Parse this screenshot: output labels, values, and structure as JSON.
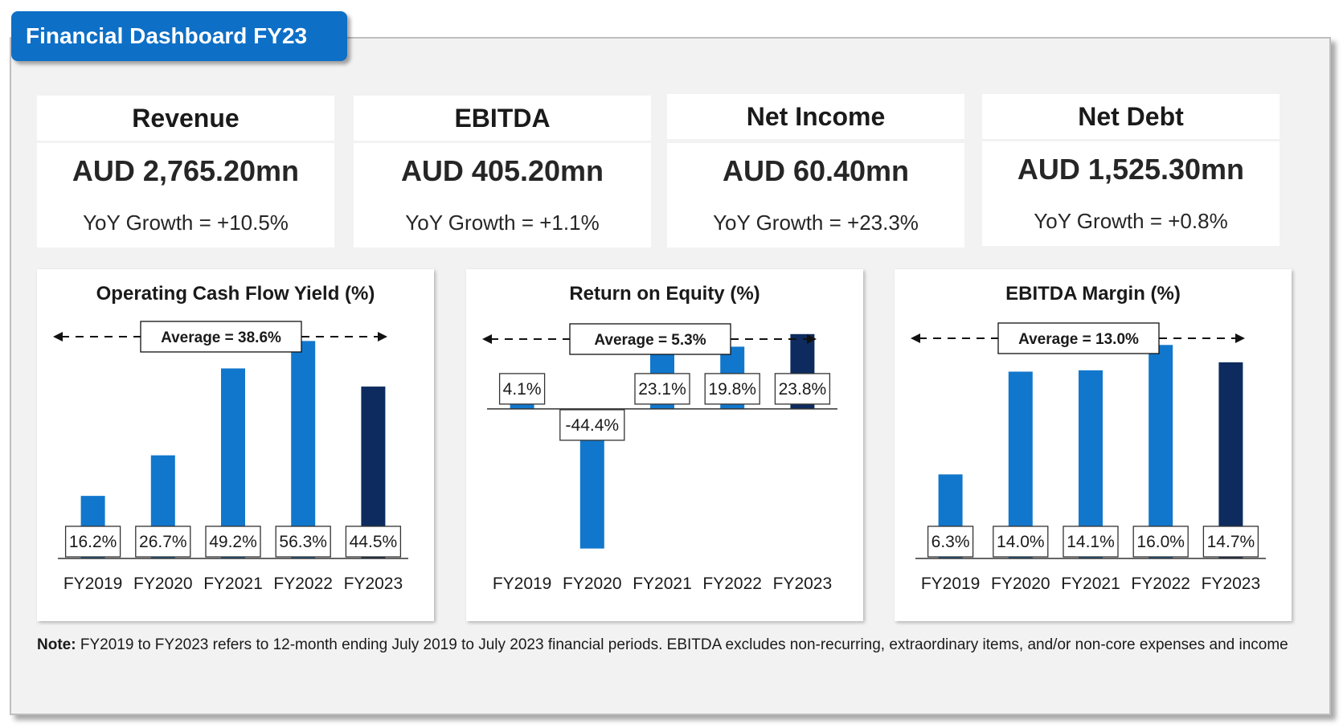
{
  "dashboard": {
    "title": "Financial Dashboard FY23"
  },
  "kpis": [
    {
      "label": "Revenue",
      "value": "AUD 2,765.20mn",
      "growth": "YoY Growth = +10.5%"
    },
    {
      "label": "EBITDA",
      "value": "AUD 405.20mn",
      "growth": "YoY Growth = +1.1%"
    },
    {
      "label": "Net Income",
      "value": "AUD 60.40mn",
      "growth": "YoY Growth = +23.3%"
    },
    {
      "label": "Net Debt",
      "value": "AUD 1,525.30mn",
      "growth": "YoY Growth = +0.8%"
    }
  ],
  "colors": {
    "bar": "#1177cc",
    "highlight": "#0d2b5e",
    "tab": "#0e6fc6"
  },
  "chart_data": [
    {
      "type": "bar",
      "title": "Operating Cash Flow Yield (%)",
      "categories": [
        "FY2019",
        "FY2020",
        "FY2021",
        "FY2022",
        "FY2023"
      ],
      "values": [
        16.2,
        26.7,
        49.2,
        56.3,
        44.5
      ],
      "labels": [
        "16.2%",
        "26.7%",
        "49.2%",
        "56.3%",
        "44.5%"
      ],
      "average_label": "Average = 38.6%",
      "ylim": [
        0,
        57
      ]
    },
    {
      "type": "bar",
      "title": "Return on Equity (%)",
      "categories": [
        "FY2019",
        "FY2020",
        "FY2021",
        "FY2022",
        "FY2023"
      ],
      "values": [
        4.1,
        -44.4,
        23.1,
        19.8,
        23.8
      ],
      "labels": [
        "4.1%",
        "-44.4%",
        "23.1%",
        "19.8%",
        "23.8%"
      ],
      "average_label": "Average = 5.3%",
      "ylim": [
        -45,
        24
      ]
    },
    {
      "type": "bar",
      "title": "EBITDA Margin (%)",
      "categories": [
        "FY2019",
        "FY2020",
        "FY2021",
        "FY2022",
        "FY2023"
      ],
      "values": [
        6.3,
        14.0,
        14.1,
        16.0,
        14.7
      ],
      "labels": [
        "6.3%",
        "14.0%",
        "14.1%",
        "16.0%",
        "14.7%"
      ],
      "average_label": "Average = 13.0%",
      "ylim": [
        0,
        16.5
      ]
    }
  ],
  "note": {
    "prefix": "Note:",
    "text": "FY2019 to FY2023 refers to 12-month ending July 2019 to July 2023 financial periods. EBITDA excludes non-recurring, extraordinary items, and/or non-core expenses and income"
  }
}
